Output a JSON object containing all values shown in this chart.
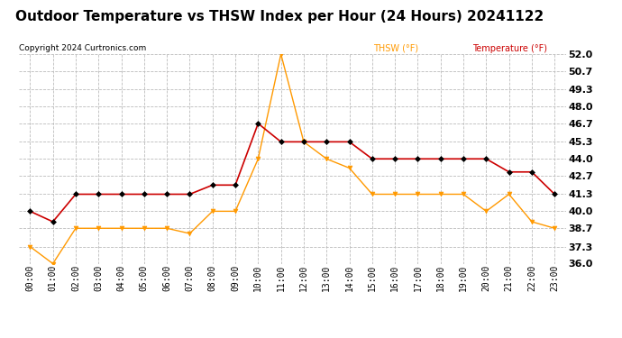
{
  "title": "Outdoor Temperature vs THSW Index per Hour (24 Hours) 20241122",
  "copyright": "Copyright 2024 Curtronics.com",
  "legend_thsw": "THSW (°F)",
  "legend_temp": "Temperature (°F)",
  "hours": [
    "00:00",
    "01:00",
    "02:00",
    "03:00",
    "04:00",
    "05:00",
    "06:00",
    "07:00",
    "08:00",
    "09:00",
    "10:00",
    "11:00",
    "12:00",
    "13:00",
    "14:00",
    "15:00",
    "16:00",
    "17:00",
    "18:00",
    "19:00",
    "20:00",
    "21:00",
    "22:00",
    "23:00"
  ],
  "temperature": [
    40.0,
    39.2,
    41.3,
    41.3,
    41.3,
    41.3,
    41.3,
    41.3,
    42.0,
    42.0,
    46.7,
    45.3,
    45.3,
    45.3,
    45.3,
    44.0,
    44.0,
    44.0,
    44.0,
    44.0,
    44.0,
    43.0,
    43.0,
    41.3
  ],
  "thsw": [
    37.3,
    36.0,
    38.7,
    38.7,
    38.7,
    38.7,
    38.7,
    38.3,
    40.0,
    40.0,
    44.0,
    52.0,
    45.3,
    44.0,
    43.3,
    41.3,
    41.3,
    41.3,
    41.3,
    41.3,
    40.0,
    41.3,
    39.2,
    38.7
  ],
  "temp_color": "#cc0000",
  "thsw_color": "#ff9900",
  "marker_color": "#000000",
  "ylim_min": 36.0,
  "ylim_max": 52.0,
  "ytick_values": [
    36.0,
    37.3,
    38.7,
    40.0,
    41.3,
    42.7,
    44.0,
    45.3,
    46.7,
    48.0,
    49.3,
    50.7,
    52.0
  ],
  "background_color": "#ffffff",
  "grid_color": "#bbbbbb",
  "title_fontsize": 11,
  "label_fontsize": 7,
  "copyright_fontsize": 6.5,
  "ytick_fontsize": 8
}
